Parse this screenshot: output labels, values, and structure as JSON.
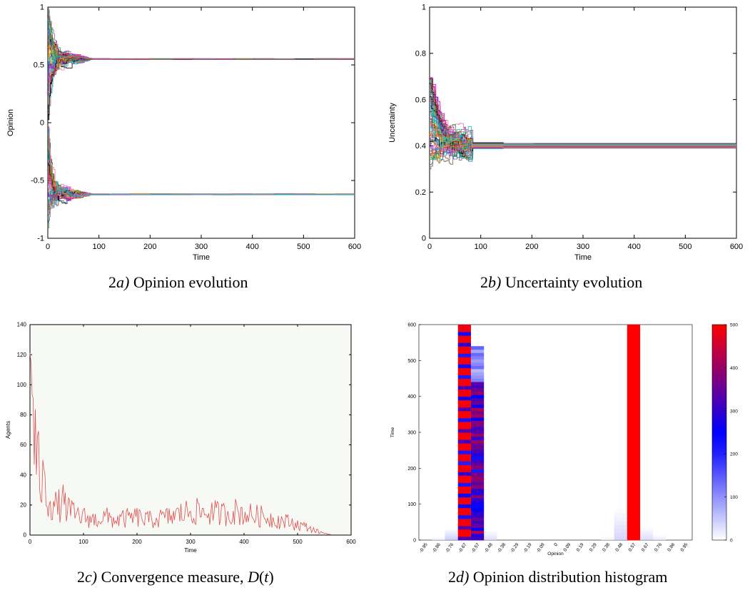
{
  "captions": {
    "a": {
      "prefix": "2",
      "italic": "a)",
      "text": " Opinion evolution"
    },
    "b": {
      "prefix": "2",
      "italic": "b)",
      "text": " Uncertainty evolution"
    },
    "c": {
      "prefix": "2",
      "italic": "c)",
      "text": " Convergence measure, ",
      "italic2": "D",
      "suffix": "(",
      "italic3": "t",
      "suffix2": ")"
    },
    "d": {
      "prefix": "2",
      "italic": "d)",
      "text": " Opinion distribution histogram"
    }
  },
  "chart_data": [
    {
      "id": "opinion",
      "type": "line",
      "xlabel": "Time",
      "ylabel": "Opinion",
      "xlim": [
        0,
        600
      ],
      "ylim": [
        -1,
        1
      ],
      "xticks": [
        0,
        100,
        200,
        300,
        400,
        500,
        600
      ],
      "yticks": [
        {
          "v": 1,
          "label": "1"
        },
        {
          "v": 0.5,
          "label": "0.5"
        },
        {
          "v": 0,
          "label": "0"
        },
        {
          "v": -0.5,
          "label": "-0.5"
        },
        {
          "v": -1,
          "label": "-1"
        }
      ],
      "clusters": [
        {
          "converged_value": 0.55,
          "initial_range": [
            0.0,
            1.0
          ],
          "settle_time": 80
        },
        {
          "converged_value": -0.62,
          "initial_range": [
            -1.0,
            0.0
          ],
          "settle_time": 80
        }
      ],
      "series_colors": [
        "#000000",
        "#1f77b4",
        "#ff7f0e",
        "#2ca02c",
        "#d62728",
        "#9467bd",
        "#8c564b",
        "#e377c2",
        "#17becf",
        "#bcbd22",
        "#00aaaa",
        "#cc00cc"
      ]
    },
    {
      "id": "uncertainty",
      "type": "line",
      "xlabel": "Time",
      "ylabel": "Uncertainty",
      "xlim": [
        0,
        600
      ],
      "ylim": [
        0,
        1
      ],
      "xticks": [
        0,
        100,
        200,
        300,
        400,
        500,
        600
      ],
      "yticks": [
        {
          "v": 0,
          "label": "0"
        },
        {
          "v": 0.2,
          "label": "0.2"
        },
        {
          "v": 0.4,
          "label": "0.4"
        },
        {
          "v": 0.6,
          "label": "0.6"
        },
        {
          "v": 0.8,
          "label": "0.8"
        },
        {
          "v": 1,
          "label": "1"
        }
      ],
      "initial_range": [
        0.3,
        0.7
      ],
      "converged_range": [
        0.39,
        0.41
      ],
      "settle_time": 80
    },
    {
      "id": "convergence",
      "type": "line",
      "xlabel": "Time",
      "ylabel": "Agents",
      "xlim": [
        0,
        600
      ],
      "ylim": [
        0,
        140
      ],
      "xticks": [
        0,
        100,
        200,
        300,
        400,
        500,
        600
      ],
      "yticks": [
        0,
        20,
        40,
        60,
        80,
        100,
        120,
        140
      ],
      "line_color": "#e05050",
      "points": [
        [
          0,
          128
        ],
        [
          3,
          110
        ],
        [
          6,
          70
        ],
        [
          10,
          60
        ],
        [
          15,
          45
        ],
        [
          20,
          38
        ],
        [
          30,
          28
        ],
        [
          40,
          22
        ],
        [
          50,
          18
        ],
        [
          60,
          22
        ],
        [
          70,
          18
        ],
        [
          80,
          14
        ],
        [
          100,
          12
        ],
        [
          120,
          10
        ],
        [
          140,
          12
        ],
        [
          160,
          10
        ],
        [
          180,
          11
        ],
        [
          200,
          12
        ],
        [
          220,
          10
        ],
        [
          240,
          11
        ],
        [
          260,
          12
        ],
        [
          280,
          14
        ],
        [
          300,
          16
        ],
        [
          320,
          15
        ],
        [
          340,
          15
        ],
        [
          360,
          14
        ],
        [
          380,
          16
        ],
        [
          400,
          14
        ],
        [
          420,
          13
        ],
        [
          440,
          12
        ],
        [
          460,
          10
        ],
        [
          480,
          9
        ],
        [
          500,
          7
        ],
        [
          520,
          5
        ],
        [
          540,
          2
        ],
        [
          555,
          1
        ],
        [
          565,
          0
        ]
      ],
      "noise_amplitude": 0.6
    },
    {
      "id": "histogram",
      "type": "heatmap",
      "xlabel": "Opinion",
      "ylabel": "Time",
      "ylim": [
        0,
        600
      ],
      "yticks": [
        0,
        100,
        200,
        300,
        400,
        500,
        600
      ],
      "bins": [
        "-0.95",
        "-0.86",
        "-0.76",
        "-0.67",
        "-0.57",
        "-0.48",
        "-0.38",
        "-0.29",
        "-0.19",
        "-0.09",
        "0",
        "0.09",
        "0.19",
        "0.29",
        "0.38",
        "0.48",
        "0.57",
        "0.67",
        "0.76",
        "0.86",
        "0.95"
      ],
      "colorbar": {
        "min": 0,
        "max": 500,
        "ticks": [
          0,
          100,
          200,
          300,
          400,
          500
        ]
      },
      "heavy_bins": [
        {
          "bin": 3,
          "count": 500,
          "from": 0,
          "to": 600
        },
        {
          "bin": 4,
          "count": 320,
          "from": 0,
          "to": 540
        },
        {
          "bin": 16,
          "count": 500,
          "from": 0,
          "to": 600
        }
      ],
      "light_bins": [
        {
          "bin": 2,
          "count": 60,
          "from": 0,
          "to": 30
        },
        {
          "bin": 5,
          "count": 40,
          "from": 0,
          "to": 25
        },
        {
          "bin": 15,
          "count": 50,
          "from": 0,
          "to": 85
        },
        {
          "bin": 17,
          "count": 40,
          "from": 0,
          "to": 35
        },
        {
          "bin": 1,
          "count": 20,
          "from": 0,
          "to": 10
        },
        {
          "bin": 18,
          "count": 25,
          "from": 0,
          "to": 15
        },
        {
          "bin": 14,
          "count": 15,
          "from": 0,
          "to": 12
        }
      ]
    }
  ]
}
